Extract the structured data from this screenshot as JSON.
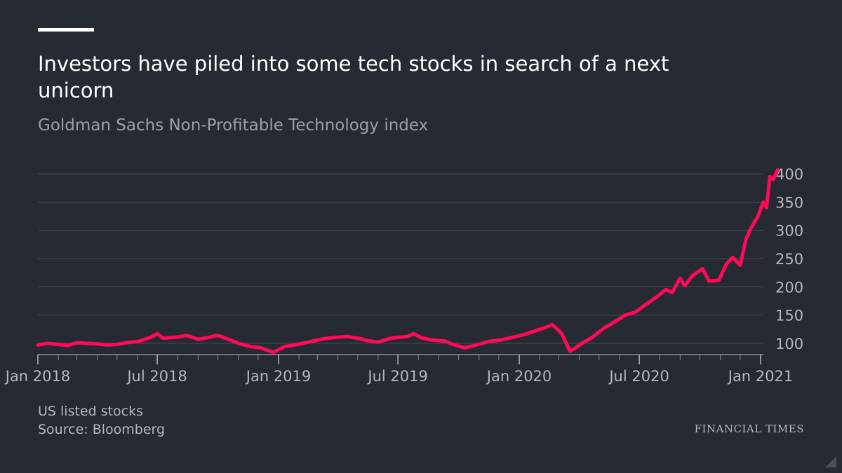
{
  "title": "Investors have piled into some tech stocks in search of a next unicorn",
  "subtitle": "Goldman Sachs Non-Profitable Technology index",
  "footer": {
    "note": "US listed stocks",
    "source": "Source: Bloomberg"
  },
  "brand": "FINANCIAL TIMES",
  "colors": {
    "background": "#262a33",
    "line": "#ff0a57",
    "grid": "#4a4e57",
    "text": "#b6b7ba"
  },
  "chart_data": {
    "type": "line",
    "title": "",
    "xlabel": "",
    "ylabel": "",
    "y_axis_position": "right",
    "ylim": [
      80,
      410
    ],
    "yticks": [
      100,
      150,
      200,
      250,
      300,
      350,
      400
    ],
    "xlim": [
      "2018-01-01",
      "2021-01-31"
    ],
    "xticks": [
      {
        "date": "2018-01-01",
        "label": "Jan 2018"
      },
      {
        "date": "2018-07-01",
        "label": "Jul 2018"
      },
      {
        "date": "2019-01-01",
        "label": "Jan 2019"
      },
      {
        "date": "2019-07-01",
        "label": "Jul 2019"
      },
      {
        "date": "2020-01-01",
        "label": "Jan 2020"
      },
      {
        "date": "2020-07-01",
        "label": "Jul 2020"
      },
      {
        "date": "2021-01-01",
        "label": "Jan 2021"
      }
    ],
    "series": [
      {
        "values": [
          [
            "2018-01-01",
            97
          ],
          [
            "2018-01-15",
            100
          ],
          [
            "2018-02-01",
            98
          ],
          [
            "2018-02-15",
            96
          ],
          [
            "2018-03-01",
            101
          ],
          [
            "2018-03-15",
            100
          ],
          [
            "2018-04-01",
            99
          ],
          [
            "2018-04-15",
            97
          ],
          [
            "2018-05-01",
            98
          ],
          [
            "2018-05-15",
            101
          ],
          [
            "2018-06-01",
            103
          ],
          [
            "2018-06-20",
            110
          ],
          [
            "2018-07-01",
            117
          ],
          [
            "2018-07-10",
            109
          ],
          [
            "2018-08-01",
            111
          ],
          [
            "2018-08-15",
            114
          ],
          [
            "2018-09-01",
            107
          ],
          [
            "2018-09-15",
            110
          ],
          [
            "2018-10-01",
            114
          ],
          [
            "2018-10-15",
            108
          ],
          [
            "2018-11-01",
            100
          ],
          [
            "2018-11-20",
            94
          ],
          [
            "2018-12-05",
            92
          ],
          [
            "2018-12-24",
            84
          ],
          [
            "2019-01-10",
            94
          ],
          [
            "2019-01-25",
            97
          ],
          [
            "2019-02-15",
            102
          ],
          [
            "2019-03-10",
            108
          ],
          [
            "2019-03-25",
            110
          ],
          [
            "2019-04-15",
            112
          ],
          [
            "2019-05-01",
            109
          ],
          [
            "2019-05-15",
            105
          ],
          [
            "2019-06-01",
            102
          ],
          [
            "2019-06-20",
            109
          ],
          [
            "2019-07-15",
            112
          ],
          [
            "2019-07-25",
            117
          ],
          [
            "2019-08-05",
            110
          ],
          [
            "2019-08-20",
            106
          ],
          [
            "2019-09-10",
            104
          ],
          [
            "2019-09-25",
            97
          ],
          [
            "2019-10-10",
            92
          ],
          [
            "2019-10-25",
            96
          ],
          [
            "2019-11-15",
            103
          ],
          [
            "2019-12-05",
            106
          ],
          [
            "2019-12-20",
            110
          ],
          [
            "2020-01-10",
            116
          ],
          [
            "2020-01-25",
            122
          ],
          [
            "2020-02-10",
            128
          ],
          [
            "2020-02-20",
            133
          ],
          [
            "2020-03-05",
            118
          ],
          [
            "2020-03-18",
            86
          ],
          [
            "2020-03-24",
            90
          ],
          [
            "2020-04-05",
            100
          ],
          [
            "2020-04-20",
            110
          ],
          [
            "2020-05-10",
            128
          ],
          [
            "2020-05-25",
            138
          ],
          [
            "2020-06-10",
            150
          ],
          [
            "2020-06-25",
            155
          ],
          [
            "2020-07-10",
            168
          ],
          [
            "2020-07-25",
            180
          ],
          [
            "2020-08-10",
            195
          ],
          [
            "2020-08-20",
            190
          ],
          [
            "2020-09-01",
            215
          ],
          [
            "2020-09-08",
            202
          ],
          [
            "2020-09-20",
            220
          ],
          [
            "2020-10-05",
            232
          ],
          [
            "2020-10-15",
            210
          ],
          [
            "2020-10-30",
            212
          ],
          [
            "2020-11-10",
            240
          ],
          [
            "2020-11-20",
            252
          ],
          [
            "2020-12-01",
            238
          ],
          [
            "2020-12-10",
            285
          ],
          [
            "2020-12-18",
            305
          ],
          [
            "2020-12-28",
            325
          ],
          [
            "2021-01-05",
            350
          ],
          [
            "2021-01-10",
            340
          ],
          [
            "2021-01-15",
            395
          ],
          [
            "2021-01-20",
            390
          ],
          [
            "2021-01-27",
            407
          ]
        ]
      }
    ]
  }
}
